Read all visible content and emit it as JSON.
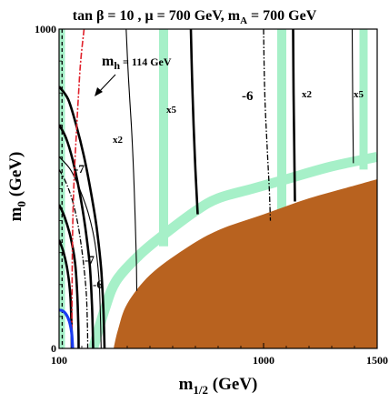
{
  "chart_data": {
    "type": "line",
    "title": "tan β = 10 ,  μ = 700 GeV,  m_A = 700 GeV",
    "title_parts": {
      "main": "tan β = 10 ,  μ = 700 GeV,  m",
      "sub": "A",
      "tail": " = 700 GeV"
    },
    "xlabel": {
      "main": "m",
      "sub": "1/2",
      "tail": " (GeV)"
    },
    "ylabel": {
      "main": "m",
      "sub": "0",
      "tail": " (GeV)"
    },
    "xlim": [
      100,
      1500
    ],
    "ylim": [
      0,
      1000
    ],
    "x_ticks": [
      "100",
      "1000",
      "1500"
    ],
    "y_ticks": [
      "0",
      "1000"
    ],
    "grid": false,
    "colors": {
      "excluded_region": "#b8621f",
      "wmap_band": "#a6f0c8",
      "mh_contour": "#e0202a",
      "chargino_limit": "#1a3cf0",
      "contours": "#000000"
    },
    "annotations": [
      {
        "id": "mh",
        "text": "m",
        "sub": "h",
        "tail": " = 114 GeV"
      },
      {
        "id": "minus6-top",
        "text": "-6"
      },
      {
        "id": "minus7-upper",
        "text": "-7"
      },
      {
        "id": "minus7-lower",
        "text": "-7"
      },
      {
        "id": "minus6-lower",
        "text": "-6"
      },
      {
        "id": "x2-left",
        "text": "x2"
      },
      {
        "id": "x5-mid",
        "text": "x5"
      },
      {
        "id": "x2-right",
        "text": "x2"
      },
      {
        "id": "x5-right",
        "text": "x5"
      }
    ],
    "excluded_region_boundary": [
      [
        340,
        0
      ],
      [
        360,
        60
      ],
      [
        400,
        140
      ],
      [
        500,
        230
      ],
      [
        650,
        310
      ],
      [
        800,
        370
      ],
      [
        1000,
        420
      ],
      [
        1200,
        470
      ],
      [
        1400,
        510
      ],
      [
        1500,
        530
      ],
      [
        1500,
        0
      ]
    ],
    "mh_contour": [
      [
        210,
        1000
      ],
      [
        195,
        900
      ],
      [
        185,
        790
      ],
      [
        175,
        660
      ],
      [
        168,
        560
      ],
      [
        163,
        470
      ],
      [
        160,
        380
      ],
      [
        158,
        270
      ],
      [
        157,
        160
      ],
      [
        156,
        0
      ]
    ],
    "chargino_limit": [
      [
        100,
        120
      ],
      [
        115,
        118
      ],
      [
        130,
        108
      ],
      [
        145,
        85
      ],
      [
        155,
        50
      ],
      [
        160,
        0
      ]
    ],
    "wmap_strips": [
      {
        "name": "left-vertical",
        "points": [
          [
            108,
            1000
          ],
          [
            108,
            0
          ]
        ]
      },
      {
        "name": "main-coannihilation",
        "points": [
          [
            250,
            0
          ],
          [
            300,
            120
          ],
          [
            350,
            210
          ],
          [
            450,
            290
          ],
          [
            550,
            350
          ],
          [
            700,
            430
          ],
          [
            800,
            470
          ],
          [
            950,
            500
          ],
          [
            1100,
            530
          ],
          [
            1300,
            570
          ],
          [
            1500,
            600
          ]
        ]
      },
      {
        "name": "focus-strip-1",
        "points": [
          [
            560,
            1000
          ],
          [
            560,
            320
          ]
        ]
      },
      {
        "name": "focus-strip-2",
        "points": [
          [
            1080,
            1000
          ],
          [
            1080,
            420
          ]
        ]
      },
      {
        "name": "focus-strip-3",
        "points": [
          [
            1440,
            1000
          ],
          [
            1440,
            560
          ]
        ]
      }
    ],
    "thick_contours": [
      {
        "label": "-7 outer",
        "points": [
          [
            100,
            820
          ],
          [
            140,
            780
          ],
          [
            175,
            700
          ],
          [
            210,
            600
          ],
          [
            240,
            490
          ],
          [
            265,
            380
          ],
          [
            285,
            250
          ],
          [
            295,
            120
          ],
          [
            300,
            0
          ]
        ]
      },
      {
        "label": "-7 inner",
        "points": [
          [
            100,
            700
          ],
          [
            130,
            660
          ],
          [
            160,
            590
          ],
          [
            190,
            490
          ],
          [
            215,
            380
          ],
          [
            235,
            260
          ],
          [
            245,
            130
          ],
          [
            250,
            0
          ]
        ]
      },
      {
        "label": "-6 lower outer",
        "points": [
          [
            100,
            450
          ],
          [
            125,
            410
          ],
          [
            150,
            350
          ],
          [
            170,
            270
          ],
          [
            180,
            170
          ],
          [
            185,
            60
          ],
          [
            186,
            0
          ]
        ]
      },
      {
        "label": "-6 lower inner",
        "points": [
          [
            100,
            340
          ],
          [
            120,
            300
          ],
          [
            138,
            240
          ],
          [
            150,
            160
          ],
          [
            155,
            60
          ],
          [
            156,
            0
          ]
        ]
      },
      {
        "label": "-6 vertical",
        "points": [
          [
            680,
            1000
          ],
          [
            685,
            850
          ],
          [
            692,
            700
          ],
          [
            700,
            560
          ],
          [
            710,
            420
          ]
        ]
      },
      {
        "label": "x2 vertical",
        "points": [
          [
            1130,
            1000
          ],
          [
            1132,
            800
          ],
          [
            1135,
            620
          ],
          [
            1138,
            460
          ]
        ]
      }
    ],
    "thin_contours": [
      {
        "label": "x5 mid",
        "points": [
          [
            395,
            1000
          ],
          [
            405,
            850
          ],
          [
            418,
            700
          ],
          [
            428,
            550
          ],
          [
            435,
            400
          ],
          [
            440,
            280
          ],
          [
            442,
            180
          ]
        ]
      },
      {
        "label": "x5 right",
        "points": [
          [
            1390,
            1000
          ],
          [
            1392,
            800
          ],
          [
            1395,
            580
          ]
        ]
      },
      {
        "label": "x2 left",
        "points": [
          [
            100,
            600
          ],
          [
            150,
            560
          ],
          [
            190,
            500
          ],
          [
            230,
            420
          ],
          [
            258,
            330
          ],
          [
            275,
            220
          ],
          [
            282,
            100
          ],
          [
            285,
            0
          ]
        ]
      }
    ],
    "dashdot_contours": [
      {
        "label": "left",
        "points": [
          [
            100,
            560
          ],
          [
            130,
            520
          ],
          [
            160,
            460
          ],
          [
            185,
            380
          ],
          [
            205,
            280
          ],
          [
            220,
            170
          ],
          [
            225,
            60
          ],
          [
            226,
            0
          ]
        ]
      },
      {
        "label": "right",
        "points": [
          [
            1000,
            1000
          ],
          [
            1005,
            800
          ],
          [
            1015,
            640
          ],
          [
            1025,
            500
          ],
          [
            1030,
            400
          ]
        ]
      }
    ],
    "dashed_contours": [
      {
        "label": "left vertical",
        "points": [
          [
            113,
            1000
          ],
          [
            113,
            300
          ],
          [
            114,
            0
          ]
        ]
      }
    ]
  }
}
